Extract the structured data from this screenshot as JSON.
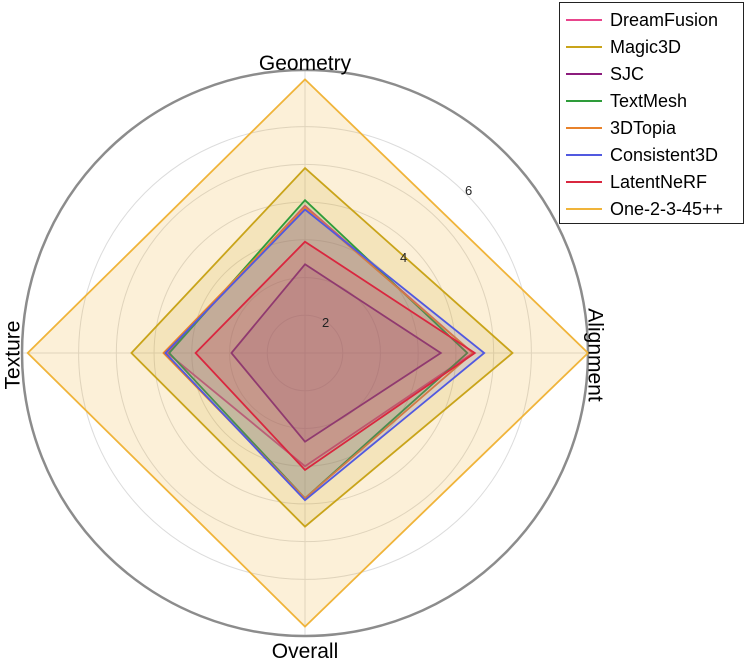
{
  "chart_data": {
    "type": "radar",
    "axes": [
      "Geometry",
      "Alignment",
      "Overall",
      "Texture"
    ],
    "rmax": 7.5,
    "rticks": [
      2,
      4,
      6
    ],
    "rtick_labels": [
      "2",
      "4",
      "6"
    ],
    "grid": true,
    "legend": "top-right",
    "series": [
      {
        "name": "DreamFusion",
        "color": "#e8458c",
        "values": [
          3.9,
          4.45,
          3.0,
          3.65
        ]
      },
      {
        "name": "Magic3D",
        "color": "#c9a41a",
        "values": [
          4.9,
          5.5,
          4.6,
          4.6
        ]
      },
      {
        "name": "SJC",
        "color": "#8c1c7d",
        "values": [
          2.35,
          3.6,
          2.35,
          1.95
        ]
      },
      {
        "name": "TextMesh",
        "color": "#2e9c3a",
        "values": [
          4.05,
          4.3,
          3.85,
          3.6
        ]
      },
      {
        "name": "3DTopia",
        "color": "#e8822b",
        "values": [
          3.85,
          4.45,
          3.85,
          3.75
        ]
      },
      {
        "name": "Consistent3D",
        "color": "#5159e0",
        "values": [
          3.8,
          4.75,
          3.9,
          3.7
        ]
      },
      {
        "name": "LatentNeRF",
        "color": "#d9273f",
        "values": [
          2.95,
          4.5,
          3.1,
          2.9
        ]
      },
      {
        "name": "One-2-3-45++",
        "color": "#f0b43a",
        "values": [
          7.25,
          7.5,
          7.25,
          7.35
        ],
        "fill": true
      }
    ]
  }
}
